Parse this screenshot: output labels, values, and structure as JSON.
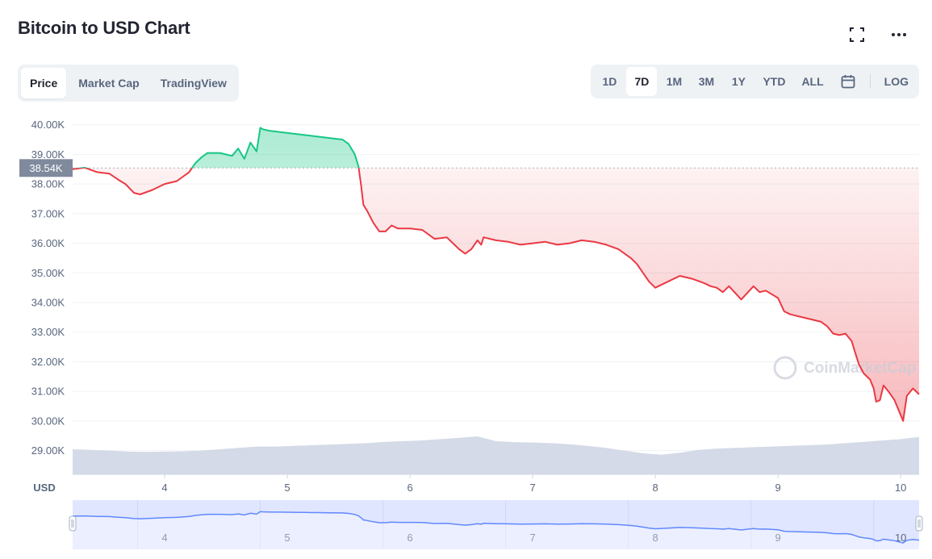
{
  "header": {
    "title": "Bitcoin to USD Chart",
    "fullscreen_icon": "fullscreen-icon",
    "more_icon": "more-horizontal-icon"
  },
  "tabs": [
    {
      "label": "Price",
      "active": true
    },
    {
      "label": "Market Cap",
      "active": false
    },
    {
      "label": "TradingView",
      "active": false
    }
  ],
  "ranges": [
    {
      "label": "1D",
      "active": false
    },
    {
      "label": "7D",
      "active": true
    },
    {
      "label": "1M",
      "active": false
    },
    {
      "label": "3M",
      "active": false
    },
    {
      "label": "1Y",
      "active": false
    },
    {
      "label": "YTD",
      "active": false
    },
    {
      "label": "ALL",
      "active": false
    }
  ],
  "calendar_icon": "calendar-icon",
  "log_label": "LOG",
  "colors": {
    "up": "#16c784",
    "down": "#ea3943",
    "volume": "#cfd6e4",
    "navigator_line": "#6188ff",
    "navigator_fill": "#e0e6ff",
    "price_tag_bg": "#808a9d"
  },
  "chart_data": {
    "type": "line",
    "currency_label": "USD",
    "current_price_label": "38.54K",
    "reference_price": 38540,
    "y_ticks": [
      "40.00K",
      "39.00K",
      "38.00K",
      "37.00K",
      "36.00K",
      "35.00K",
      "34.00K",
      "33.00K",
      "32.00K",
      "31.00K",
      "30.00K",
      "29.00K"
    ],
    "ylim": [
      28200,
      40400
    ],
    "xlim": [
      3.25,
      10.15
    ],
    "x_ticks": [
      "4",
      "5",
      "6",
      "7",
      "8",
      "9",
      "10"
    ],
    "watermark": "CoinMarketCap",
    "series": [
      {
        "x": [
          3.25,
          3.35,
          3.45,
          3.55,
          3.62,
          3.68,
          3.75,
          3.8,
          3.9,
          4.0,
          4.1,
          4.2,
          4.25,
          4.3,
          4.35,
          4.45,
          4.55,
          4.6,
          4.65,
          4.7,
          4.75,
          4.78,
          4.8,
          4.85,
          4.95,
          5.05,
          5.15,
          5.25,
          5.35,
          5.45,
          5.5,
          5.55,
          5.58,
          5.6,
          5.62,
          5.65,
          5.7,
          5.75,
          5.8,
          5.85,
          5.9,
          6.0,
          6.1,
          6.2,
          6.3,
          6.4,
          6.45,
          6.5,
          6.55,
          6.58,
          6.6,
          6.7,
          6.8,
          6.9,
          7.0,
          7.1,
          7.2,
          7.3,
          7.4,
          7.5,
          7.6,
          7.7,
          7.8,
          7.85,
          7.9,
          7.95,
          8.0,
          8.1,
          8.2,
          8.3,
          8.4,
          8.45,
          8.5,
          8.55,
          8.6,
          8.7,
          8.8,
          8.85,
          8.9,
          9.0,
          9.05,
          9.1,
          9.2,
          9.3,
          9.35,
          9.4,
          9.45,
          9.5,
          9.55,
          9.6,
          9.63,
          9.66,
          9.7,
          9.75,
          9.78,
          9.8,
          9.83,
          9.86,
          9.9,
          9.95,
          10.0,
          10.02,
          10.05,
          10.1,
          10.15
        ],
        "y": [
          38500,
          38550,
          38400,
          38350,
          38150,
          38000,
          37700,
          37650,
          37800,
          38000,
          38100,
          38400,
          38700,
          38900,
          39050,
          39050,
          38950,
          39200,
          38850,
          39400,
          39100,
          39900,
          39850,
          39800,
          39750,
          39700,
          39650,
          39600,
          39550,
          39500,
          39350,
          39000,
          38600,
          38000,
          37300,
          37100,
          36700,
          36400,
          36400,
          36600,
          36500,
          36500,
          36450,
          36150,
          36200,
          35800,
          35650,
          35800,
          36100,
          35950,
          36200,
          36100,
          36050,
          35950,
          36000,
          36050,
          35950,
          36000,
          36100,
          36050,
          35950,
          35800,
          35500,
          35300,
          35000,
          34700,
          34500,
          34700,
          34900,
          34800,
          34650,
          34550,
          34500,
          34350,
          34550,
          34100,
          34550,
          34350,
          34400,
          34150,
          33700,
          33600,
          33500,
          33400,
          33350,
          33200,
          32950,
          32900,
          32950,
          32700,
          32300,
          31900,
          31600,
          31400,
          31100,
          30650,
          30700,
          31200,
          31000,
          30700,
          30200,
          30000,
          30850,
          31100,
          30900
        ]
      }
    ],
    "volume_relative": [
      0.62,
      0.6,
      0.58,
      0.55,
      0.54,
      0.55,
      0.56,
      0.58,
      0.62,
      0.66,
      0.7,
      0.7,
      0.72,
      0.74,
      0.76,
      0.78,
      0.8,
      0.84,
      0.86,
      0.88,
      0.92,
      0.96,
      1.0,
      0.86,
      0.83,
      0.82,
      0.8,
      0.77,
      0.72,
      0.66,
      0.58,
      0.5,
      0.46,
      0.52,
      0.6,
      0.64,
      0.66,
      0.68,
      0.7,
      0.72,
      0.74,
      0.76,
      0.8,
      0.84,
      0.88,
      0.92,
      0.98
    ],
    "navigator_x_ticks": [
      "4",
      "5",
      "6",
      "7",
      "8",
      "9",
      "10"
    ]
  }
}
